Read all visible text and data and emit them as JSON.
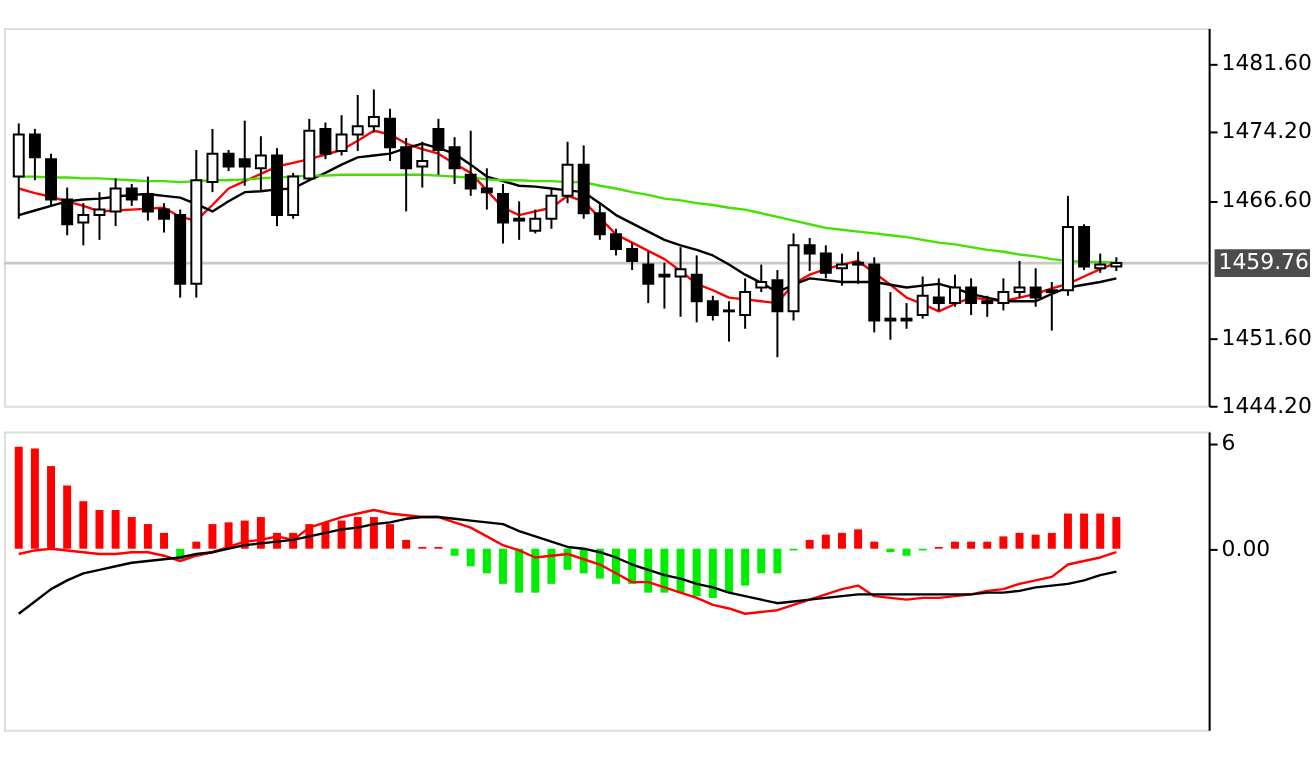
{
  "chart_data": [
    {
      "type": "candlestick",
      "tick_labels": "y",
      "categories": [
        null,
        null,
        null,
        null,
        null,
        null,
        null,
        null,
        null,
        null,
        null,
        null,
        null,
        null,
        null,
        null,
        null,
        null,
        null,
        null,
        null,
        null,
        null,
        null,
        null,
        null,
        null,
        null,
        null,
        null,
        null,
        null,
        null,
        null,
        null,
        null,
        null,
        null,
        null,
        null,
        null,
        null,
        null,
        null,
        null,
        null,
        null,
        null,
        null,
        null,
        null,
        null,
        null,
        null,
        null,
        null,
        null,
        null,
        null,
        null,
        null,
        null,
        null,
        null,
        null,
        null,
        null,
        null,
        null
      ],
      "ohlc": [
        [
          1469.2,
          1475.0,
          1464.6,
          1473.8
        ],
        [
          1473.8,
          1474.4,
          1468.8,
          1471.3
        ],
        [
          1471.1,
          1471.7,
          1466.0,
          1466.7
        ],
        [
          1466.7,
          1468.0,
          1462.8,
          1464.0
        ],
        [
          1464.2,
          1466.3,
          1461.7,
          1465.0
        ],
        [
          1465.0,
          1467.5,
          1462.3,
          1465.6
        ],
        [
          1465.4,
          1469.0,
          1463.8,
          1467.9
        ],
        [
          1467.9,
          1468.4,
          1466.0,
          1466.7
        ],
        [
          1467.3,
          1469.2,
          1464.4,
          1465.4
        ],
        [
          1465.6,
          1466.3,
          1463.1,
          1464.6
        ],
        [
          1465.0,
          1465.6,
          1456.0,
          1457.5
        ],
        [
          1457.5,
          1472.1,
          1456.0,
          1468.8
        ],
        [
          1468.6,
          1474.4,
          1467.5,
          1471.7
        ],
        [
          1471.7,
          1472.1,
          1469.8,
          1470.3
        ],
        [
          1471.1,
          1475.3,
          1468.2,
          1470.3
        ],
        [
          1470.1,
          1473.6,
          1467.7,
          1471.5
        ],
        [
          1471.5,
          1472.3,
          1463.8,
          1465.0
        ],
        [
          1465.0,
          1469.6,
          1464.6,
          1469.2
        ],
        [
          1469.0,
          1475.5,
          1468.8,
          1474.2
        ],
        [
          1474.4,
          1475.1,
          1471.1,
          1471.7
        ],
        [
          1472.0,
          1475.9,
          1471.5,
          1473.8
        ],
        [
          1473.8,
          1478.1,
          1472.0,
          1474.7
        ],
        [
          1474.7,
          1478.7,
          1474.0,
          1475.7
        ],
        [
          1475.5,
          1476.6,
          1470.9,
          1472.4
        ],
        [
          1472.4,
          1473.4,
          1465.4,
          1470.1
        ],
        [
          1470.3,
          1473.0,
          1468.0,
          1470.9
        ],
        [
          1474.4,
          1475.5,
          1469.4,
          1472.1
        ],
        [
          1472.4,
          1473.5,
          1468.4,
          1470.1
        ],
        [
          1469.4,
          1474.2,
          1467.1,
          1467.9
        ],
        [
          1467.9,
          1470.1,
          1465.6,
          1467.5
        ],
        [
          1467.3,
          1468.4,
          1461.9,
          1464.2
        ],
        [
          1464.6,
          1466.5,
          1462.3,
          1464.4
        ],
        [
          1463.3,
          1465.6,
          1463.0,
          1464.6
        ],
        [
          1464.6,
          1467.9,
          1463.5,
          1467.1
        ],
        [
          1467.1,
          1473.0,
          1466.3,
          1470.5
        ],
        [
          1470.5,
          1472.6,
          1464.6,
          1465.2
        ],
        [
          1465.2,
          1466.3,
          1462.3,
          1462.9
        ],
        [
          1462.9,
          1463.5,
          1460.6,
          1461.3
        ],
        [
          1461.3,
          1462.0,
          1459.0,
          1460.0
        ],
        [
          1459.6,
          1461.0,
          1455.4,
          1457.5
        ],
        [
          1458.5,
          1459.8,
          1454.8,
          1458.3
        ],
        [
          1458.3,
          1461.5,
          1453.9,
          1459.1
        ],
        [
          1458.5,
          1460.6,
          1453.3,
          1455.6
        ],
        [
          1455.6,
          1456.2,
          1453.5,
          1454.1
        ],
        [
          1454.6,
          1455.6,
          1451.2,
          1454.5
        ],
        [
          1454.1,
          1458.1,
          1452.6,
          1456.6
        ],
        [
          1457.1,
          1459.6,
          1456.6,
          1457.7
        ],
        [
          1457.9,
          1459.0,
          1449.5,
          1454.5
        ],
        [
          1454.5,
          1463.0,
          1453.5,
          1461.7
        ],
        [
          1461.7,
          1462.5,
          1458.9,
          1460.8
        ],
        [
          1460.8,
          1461.7,
          1458.1,
          1458.7
        ],
        [
          1459.2,
          1460.8,
          1457.3,
          1459.6
        ],
        [
          1459.8,
          1461.0,
          1457.5,
          1459.6
        ],
        [
          1459.6,
          1460.4,
          1452.2,
          1453.5
        ],
        [
          1453.7,
          1456.6,
          1451.4,
          1453.5
        ],
        [
          1453.5,
          1455.4,
          1452.6,
          1453.7
        ],
        [
          1454.1,
          1458.3,
          1453.7,
          1456.2
        ],
        [
          1456.0,
          1458.1,
          1454.6,
          1455.4
        ],
        [
          1455.4,
          1458.5,
          1455.0,
          1457.1
        ],
        [
          1457.1,
          1458.1,
          1454.1,
          1455.4
        ],
        [
          1455.6,
          1456.2,
          1453.9,
          1455.4
        ],
        [
          1455.4,
          1458.1,
          1454.6,
          1456.6
        ],
        [
          1456.6,
          1460.0,
          1456.0,
          1457.1
        ],
        [
          1457.1,
          1459.2,
          1455.0,
          1456.0
        ],
        [
          1456.6,
          1457.7,
          1452.4,
          1456.8
        ],
        [
          1456.8,
          1467.1,
          1456.2,
          1463.7
        ],
        [
          1463.7,
          1464.0,
          1459.0,
          1459.4
        ],
        [
          1459.2,
          1460.8,
          1458.7,
          1459.6
        ],
        [
          1459.4,
          1460.4,
          1458.9,
          1459.76
        ]
      ],
      "series": [
        {
          "type": "line",
          "color": "#ff0000",
          "values": [
            1467.9,
            1467.4,
            1467.0,
            1466.5,
            1466.0,
            1465.4,
            1465.5,
            1465.6,
            1465.7,
            1465.8,
            1464.8,
            1464.4,
            1466.1,
            1467.9,
            1468.7,
            1469.5,
            1470.3,
            1470.7,
            1471.1,
            1471.6,
            1472.1,
            1473.1,
            1474.2,
            1473.8,
            1472.8,
            1472.2,
            1471.7,
            1470.6,
            1469.6,
            1467.7,
            1465.8,
            1465.0,
            1465.4,
            1465.8,
            1467.1,
            1466.5,
            1464.7,
            1462.9,
            1462.0,
            1461.1,
            1460.2,
            1458.9,
            1457.5,
            1456.8,
            1456.0,
            1455.8,
            1455.6,
            1455.4,
            1457.5,
            1458.5,
            1459.1,
            1459.6,
            1460.0,
            1458.7,
            1457.4,
            1456.0,
            1455.3,
            1454.5,
            1455.3,
            1456.0,
            1455.8,
            1455.6,
            1456.0,
            1456.4,
            1457.0,
            1457.5,
            1458.3,
            1459.1,
            1459.8
          ]
        },
        {
          "type": "line",
          "color": "#000000",
          "values": [
            1465.0,
            1465.5,
            1466.0,
            1466.5,
            1466.7,
            1466.8,
            1467.0,
            1467.2,
            1467.3,
            1467.1,
            1466.9,
            1466.2,
            1465.4,
            1466.5,
            1467.5,
            1467.6,
            1467.8,
            1467.9,
            1468.8,
            1469.6,
            1470.5,
            1471.3,
            1471.5,
            1471.7,
            1472.3,
            1472.8,
            1472.3,
            1471.7,
            1470.5,
            1469.2,
            1468.7,
            1468.2,
            1468.1,
            1467.9,
            1467.7,
            1467.5,
            1466.3,
            1465.0,
            1464.1,
            1463.2,
            1462.3,
            1461.7,
            1461.2,
            1460.6,
            1459.6,
            1458.5,
            1457.6,
            1456.6,
            1457.4,
            1458.1,
            1457.9,
            1457.7,
            1457.7,
            1457.7,
            1457.4,
            1457.1,
            1457.3,
            1457.5,
            1457.0,
            1456.4,
            1456.0,
            1455.6,
            1455.6,
            1455.6,
            1456.4,
            1457.1,
            1457.4,
            1457.7,
            1458.1
          ]
        },
        {
          "type": "line",
          "color": "#44e000",
          "values": [
            1469.2,
            1469.2,
            1469.1,
            1469.1,
            1469.0,
            1469.0,
            1468.9,
            1468.8,
            1468.7,
            1468.7,
            1468.6,
            1468.7,
            1468.8,
            1468.8,
            1468.9,
            1469.0,
            1469.1,
            1469.2,
            1469.3,
            1469.3,
            1469.4,
            1469.4,
            1469.4,
            1469.4,
            1469.4,
            1469.4,
            1469.3,
            1469.2,
            1469.1,
            1468.9,
            1468.8,
            1468.8,
            1468.7,
            1468.7,
            1468.6,
            1468.6,
            1468.2,
            1467.9,
            1467.5,
            1467.2,
            1466.8,
            1466.6,
            1466.3,
            1466.1,
            1465.8,
            1465.6,
            1465.2,
            1464.8,
            1464.4,
            1464.0,
            1463.6,
            1463.4,
            1463.2,
            1463.0,
            1462.8,
            1462.6,
            1462.3,
            1462.0,
            1461.8,
            1461.5,
            1461.2,
            1461.0,
            1460.7,
            1460.5,
            1460.2,
            1460.0,
            1459.9,
            1459.9,
            1459.8
          ]
        }
      ],
      "ylim": [
        1444.2,
        1485.4
      ],
      "yticks": [
        {
          "value": 1481.6,
          "label": "1481.60"
        },
        {
          "value": 1474.2,
          "label": "1474.20"
        },
        {
          "value": 1466.6,
          "label": "1466.60"
        },
        {
          "value": 1451.6,
          "label": "1451.60"
        },
        {
          "value": 1444.2,
          "label": "1444.20"
        }
      ],
      "ref_lines": [
        {
          "axis": "y",
          "value": 1459.76,
          "label": "1459.76",
          "color": "#c8c8c8"
        }
      ]
    },
    {
      "type": "bar",
      "tick_labels": "y",
      "categories": [
        null,
        null,
        null,
        null,
        null,
        null,
        null,
        null,
        null,
        null,
        null,
        null,
        null,
        null,
        null,
        null,
        null,
        null,
        null,
        null,
        null,
        null,
        null,
        null,
        null,
        null,
        null,
        null,
        null,
        null,
        null,
        null,
        null,
        null,
        null,
        null,
        null,
        null,
        null,
        null,
        null,
        null,
        null,
        null,
        null,
        null,
        null,
        null,
        null,
        null,
        null,
        null,
        null,
        null,
        null,
        null,
        null,
        null,
        null,
        null,
        null,
        null,
        null,
        null,
        null,
        null,
        null,
        null,
        null
      ],
      "series": [
        {
          "type": "bar",
          "values": [
            5.8,
            5.7,
            4.7,
            3.6,
            2.7,
            2.2,
            2.2,
            1.8,
            1.4,
            0.9,
            -0.6,
            0.4,
            1.4,
            1.5,
            1.6,
            1.8,
            0.9,
            0.9,
            1.4,
            1.5,
            1.6,
            1.8,
            1.8,
            1.4,
            0.5,
            0.1,
            0.1,
            -0.4,
            -1.0,
            -1.4,
            -2.0,
            -2.5,
            -2.5,
            -2.0,
            -1.2,
            -1.4,
            -1.7,
            -2.0,
            -2.0,
            -2.5,
            -2.5,
            -2.5,
            -2.7,
            -2.8,
            -2.5,
            -2.1,
            -1.4,
            -1.4,
            -0.1,
            0.5,
            0.8,
            0.9,
            1.1,
            0.4,
            -0.2,
            -0.4,
            -0.1,
            0.1,
            0.4,
            0.4,
            0.4,
            0.7,
            0.9,
            0.8,
            0.9,
            2.0,
            2.0,
            2.0,
            1.8
          ],
          "colors": [
            "#ff0000",
            "#ff0000",
            "#ff0000",
            "#ff0000",
            "#ff0000",
            "#ff0000",
            "#ff0000",
            "#ff0000",
            "#ff0000",
            "#ff0000",
            "#00ee00",
            "#ff0000",
            "#ff0000",
            "#ff0000",
            "#ff0000",
            "#ff0000",
            "#ff0000",
            "#ff0000",
            "#ff0000",
            "#ff0000",
            "#ff0000",
            "#ff0000",
            "#ff0000",
            "#ff0000",
            "#ff0000",
            "#ff0000",
            "#ff0000",
            "#00ee00",
            "#00ee00",
            "#00ee00",
            "#00ee00",
            "#00ee00",
            "#00ee00",
            "#00ee00",
            "#00ee00",
            "#00ee00",
            "#00ee00",
            "#00ee00",
            "#00ee00",
            "#00ee00",
            "#00ee00",
            "#00ee00",
            "#00ee00",
            "#00ee00",
            "#00ee00",
            "#00ee00",
            "#00ee00",
            "#00ee00",
            "#00ee00",
            "#ff0000",
            "#ff0000",
            "#ff0000",
            "#ff0000",
            "#ff0000",
            "#00ee00",
            "#00ee00",
            "#00ee00",
            "#ff0000",
            "#ff0000",
            "#ff0000",
            "#ff0000",
            "#ff0000",
            "#ff0000",
            "#ff0000",
            "#ff0000",
            "#ff0000",
            "#ff0000",
            "#ff0000",
            "#ff0000"
          ]
        },
        {
          "type": "line",
          "color": "#ff0000",
          "values": [
            -0.3,
            -0.1,
            0.0,
            -0.1,
            -0.2,
            -0.3,
            -0.3,
            -0.2,
            -0.2,
            -0.4,
            -0.7,
            -0.4,
            -0.2,
            0.1,
            0.4,
            0.5,
            0.7,
            0.5,
            1.2,
            1.5,
            1.8,
            2.0,
            2.2,
            2.0,
            1.9,
            1.8,
            1.8,
            1.5,
            1.2,
            0.7,
            0.2,
            -0.1,
            -0.5,
            -0.4,
            -0.3,
            -0.6,
            -0.9,
            -1.4,
            -1.9,
            -1.9,
            -2.2,
            -2.5,
            -2.8,
            -3.2,
            -3.4,
            -3.7,
            -3.6,
            -3.5,
            -3.2,
            -2.9,
            -2.6,
            -2.3,
            -2.1,
            -2.7,
            -2.8,
            -2.9,
            -2.8,
            -2.8,
            -2.7,
            -2.6,
            -2.4,
            -2.3,
            -2.0,
            -1.8,
            -1.6,
            -0.9,
            -0.7,
            -0.5,
            -0.2
          ]
        },
        {
          "type": "line",
          "color": "#000000",
          "values": [
            -3.7,
            -3.0,
            -2.3,
            -1.8,
            -1.4,
            -1.2,
            -1.0,
            -0.8,
            -0.7,
            -0.6,
            -0.5,
            -0.3,
            -0.2,
            0.0,
            0.2,
            0.3,
            0.4,
            0.5,
            0.7,
            0.9,
            1.1,
            1.2,
            1.4,
            1.5,
            1.7,
            1.8,
            1.8,
            1.7,
            1.6,
            1.5,
            1.4,
            1.0,
            0.7,
            0.4,
            0.1,
            0.0,
            -0.2,
            -0.5,
            -0.9,
            -1.2,
            -1.5,
            -1.7,
            -2.0,
            -2.2,
            -2.5,
            -2.7,
            -2.9,
            -3.1,
            -3.0,
            -2.9,
            -2.8,
            -2.7,
            -2.6,
            -2.6,
            -2.6,
            -2.6,
            -2.6,
            -2.6,
            -2.6,
            -2.6,
            -2.5,
            -2.5,
            -2.4,
            -2.2,
            -2.1,
            -2.0,
            -1.8,
            -1.5,
            -1.3
          ]
        }
      ],
      "ylim": [
        -10.3,
        6.66
      ],
      "yticks": [
        6,
        {
          "value": 0,
          "label": "0.00"
        }
      ]
    }
  ]
}
